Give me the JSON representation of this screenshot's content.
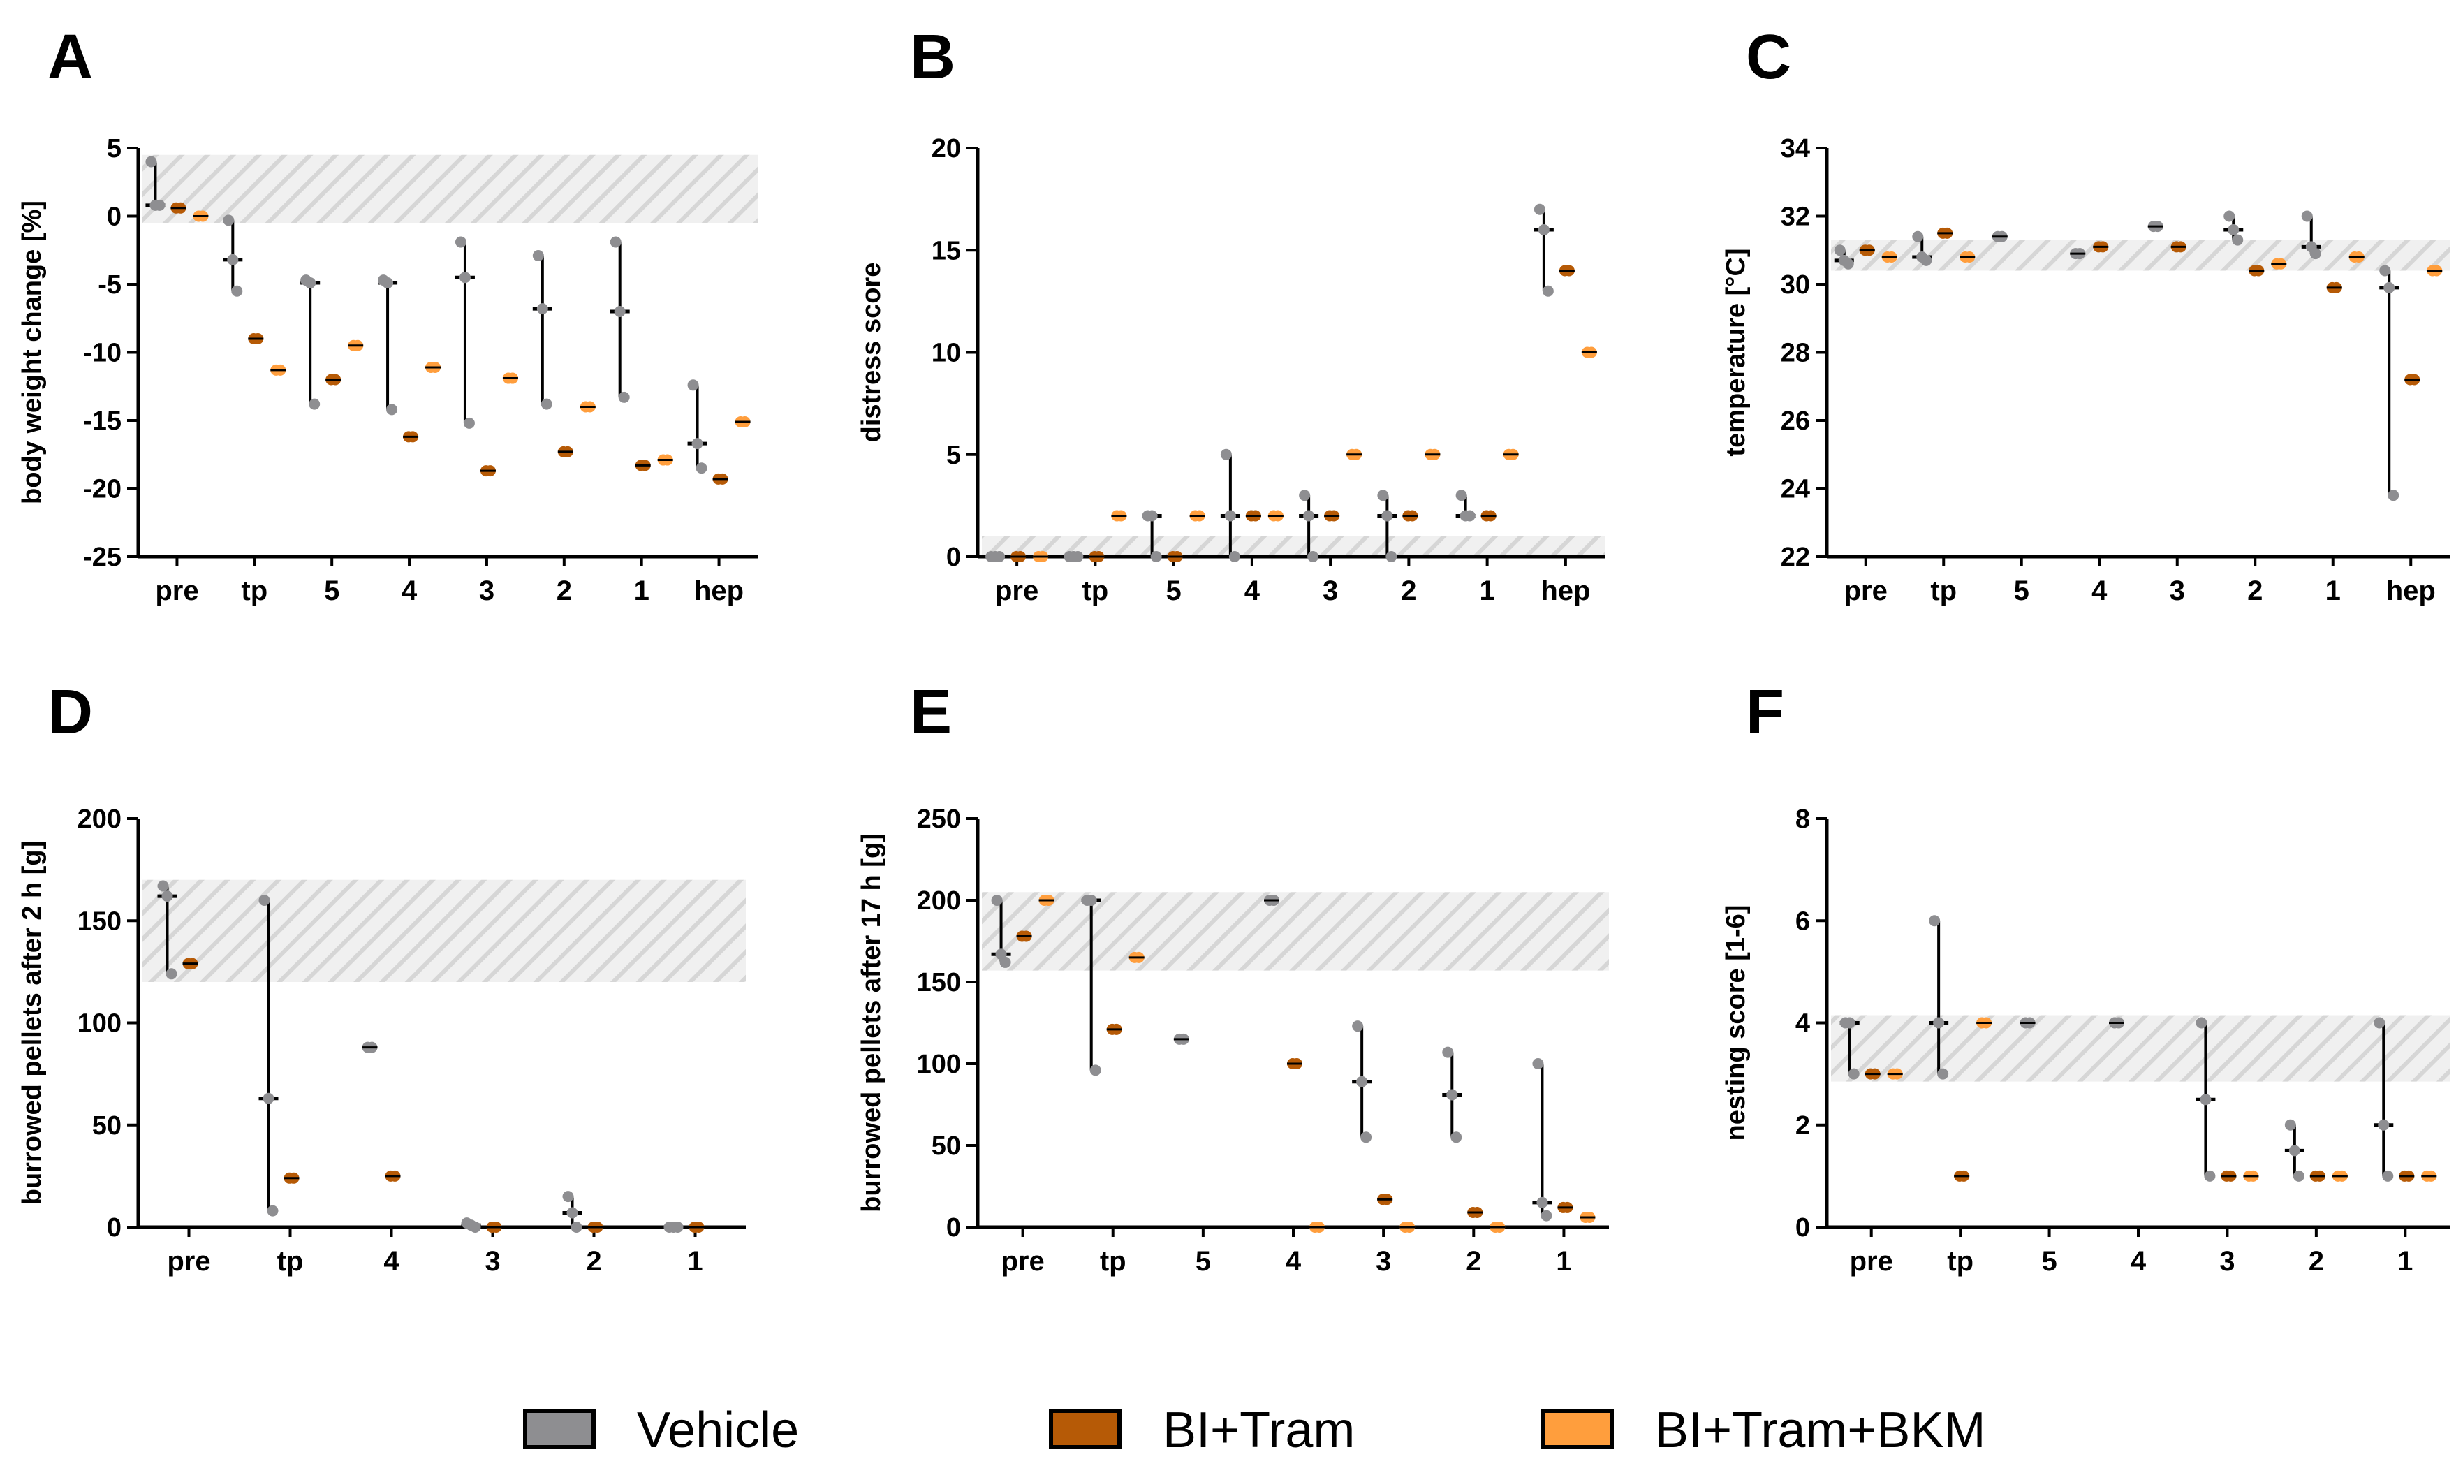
{
  "colors": {
    "Vehicle": "#8e8e91",
    "BI+Tram": "#b65a06",
    "BI+Tram+BKM": "#ff9e3d",
    "axis": "#000000",
    "band": "#d8d8d8"
  },
  "legend": {
    "items": [
      {
        "label": "Vehicle",
        "color": "#8e8e91"
      },
      {
        "label": "BI+Tram",
        "color": "#b65a06"
      },
      {
        "label": "BI+Tram+BKM",
        "color": "#ff9e3d"
      }
    ]
  },
  "chart_data": [
    {
      "letter": "A",
      "type": "scatter",
      "ylabel": "body weight change [%]",
      "categories": [
        "pre",
        "tp",
        "5",
        "4",
        "3",
        "2",
        "1",
        "hep"
      ],
      "ylim": [
        -25,
        5
      ],
      "yticks": [
        5,
        0,
        -5,
        -10,
        -15,
        -20,
        -25
      ],
      "band": [
        -0.5,
        4.5
      ],
      "series": [
        {
          "name": "Vehicle",
          "points": [
            [
              0,
              [
                4,
                0.8,
                0.8
              ]
            ],
            [
              1,
              [
                -0.3,
                -3.2,
                -5.5
              ]
            ],
            [
              2,
              [
                -4.7,
                -4.9,
                -13.8
              ]
            ],
            [
              3,
              [
                -4.7,
                -4.9,
                -14.2
              ]
            ],
            [
              4,
              [
                -1.9,
                -4.5,
                -15.2
              ]
            ],
            [
              5,
              [
                -2.9,
                -6.8,
                -13.8
              ]
            ],
            [
              6,
              [
                -1.9,
                -7,
                -13.3
              ]
            ],
            [
              7,
              [
                -12.4,
                -16.7,
                -18.5
              ]
            ]
          ]
        },
        {
          "name": "BI+Tram",
          "points": [
            [
              0,
              [
                0.6
              ]
            ],
            [
              1,
              [
                -9
              ]
            ],
            [
              2,
              [
                -12
              ]
            ],
            [
              3,
              [
                -16.2
              ]
            ],
            [
              4,
              [
                -18.7
              ]
            ],
            [
              5,
              [
                -17.3
              ]
            ],
            [
              6,
              [
                -18.3
              ]
            ],
            [
              7,
              [
                -19.3
              ]
            ]
          ]
        },
        {
          "name": "BI+Tram+BKM",
          "points": [
            [
              0,
              [
                0
              ]
            ],
            [
              1,
              [
                -11.3
              ]
            ],
            [
              2,
              [
                -9.5
              ]
            ],
            [
              3,
              [
                -11.1
              ]
            ],
            [
              4,
              [
                -11.9
              ]
            ],
            [
              5,
              [
                -14
              ]
            ],
            [
              6,
              [
                -17.9
              ]
            ],
            [
              7,
              [
                -15.1
              ]
            ]
          ]
        }
      ]
    },
    {
      "letter": "B",
      "type": "scatter",
      "ylabel": "distress score",
      "categories": [
        "pre",
        "tp",
        "5",
        "4",
        "3",
        "2",
        "1",
        "hep"
      ],
      "ylim": [
        0,
        20
      ],
      "yticks": [
        20,
        15,
        10,
        5,
        0
      ],
      "band": [
        0,
        1
      ],
      "series": [
        {
          "name": "Vehicle",
          "points": [
            [
              0,
              [
                0,
                0,
                0
              ]
            ],
            [
              1,
              [
                0,
                0,
                0
              ]
            ],
            [
              2,
              [
                2,
                2,
                0
              ]
            ],
            [
              3,
              [
                5,
                2,
                0
              ]
            ],
            [
              4,
              [
                3,
                2,
                0
              ]
            ],
            [
              5,
              [
                3,
                2,
                0
              ]
            ],
            [
              6,
              [
                3,
                2,
                2
              ]
            ],
            [
              7,
              [
                17,
                16,
                13
              ]
            ]
          ]
        },
        {
          "name": "BI+Tram",
          "points": [
            [
              0,
              [
                0
              ]
            ],
            [
              1,
              [
                0
              ]
            ],
            [
              2,
              [
                0
              ]
            ],
            [
              3,
              [
                2
              ]
            ],
            [
              4,
              [
                2
              ]
            ],
            [
              5,
              [
                2
              ]
            ],
            [
              6,
              [
                2
              ]
            ],
            [
              7,
              [
                14
              ]
            ]
          ]
        },
        {
          "name": "BI+Tram+BKM",
          "points": [
            [
              0,
              [
                0
              ]
            ],
            [
              1,
              [
                2
              ]
            ],
            [
              2,
              [
                2
              ]
            ],
            [
              3,
              [
                2
              ]
            ],
            [
              4,
              [
                5
              ]
            ],
            [
              5,
              [
                5
              ]
            ],
            [
              6,
              [
                5
              ]
            ],
            [
              7,
              [
                10
              ]
            ]
          ]
        }
      ]
    },
    {
      "letter": "C",
      "type": "scatter",
      "ylabel": "temperature [°C]",
      "categories": [
        "pre",
        "tp",
        "5",
        "4",
        "3",
        "2",
        "1",
        "hep"
      ],
      "ylim": [
        22,
        34
      ],
      "yticks": [
        34,
        32,
        30,
        28,
        26,
        24,
        22
      ],
      "band": [
        30.4,
        31.3
      ],
      "series": [
        {
          "name": "Vehicle",
          "points": [
            [
              0,
              [
                31,
                30.7,
                30.6
              ]
            ],
            [
              1,
              [
                31.4,
                30.8,
                30.7
              ]
            ],
            [
              2,
              [
                31.4
              ]
            ],
            [
              3,
              [
                30.9
              ]
            ],
            [
              4,
              [
                31.7
              ]
            ],
            [
              5,
              [
                32,
                31.6,
                31.3
              ]
            ],
            [
              6,
              [
                32,
                31.1,
                30.9
              ]
            ],
            [
              7,
              [
                30.4,
                29.9,
                23.8
              ]
            ]
          ]
        },
        {
          "name": "BI+Tram",
          "points": [
            [
              0,
              [
                31
              ]
            ],
            [
              1,
              [
                31.5
              ]
            ],
            [
              2,
              []
            ],
            [
              3,
              [
                31.1
              ]
            ],
            [
              4,
              [
                31.1
              ]
            ],
            [
              5,
              [
                30.4
              ]
            ],
            [
              6,
              [
                29.9
              ]
            ],
            [
              7,
              [
                27.2
              ]
            ]
          ]
        },
        {
          "name": "BI+Tram+BKM",
          "points": [
            [
              0,
              [
                30.8
              ]
            ],
            [
              1,
              [
                30.8
              ]
            ],
            [
              2,
              []
            ],
            [
              3,
              []
            ],
            [
              4,
              []
            ],
            [
              5,
              [
                30.6
              ]
            ],
            [
              6,
              [
                30.8
              ]
            ],
            [
              7,
              [
                30.4
              ]
            ]
          ]
        }
      ]
    },
    {
      "letter": "D",
      "type": "scatter",
      "ylabel": "burrowed pellets after 2 h [g]",
      "categories": [
        "pre",
        "tp",
        "4",
        "3",
        "2",
        "1"
      ],
      "ylim": [
        0,
        200
      ],
      "yticks": [
        200,
        150,
        100,
        50,
        0
      ],
      "band": [
        120,
        170
      ],
      "series": [
        {
          "name": "Vehicle",
          "points": [
            [
              0,
              [
                167,
                162,
                124
              ]
            ],
            [
              1,
              [
                160,
                63,
                8
              ]
            ],
            [
              2,
              [
                88
              ]
            ],
            [
              3,
              [
                2,
                1,
                0
              ]
            ],
            [
              4,
              [
                15,
                7,
                0
              ]
            ],
            [
              5,
              [
                0,
                0,
                0
              ]
            ]
          ]
        },
        {
          "name": "BI+Tram",
          "points": [
            [
              0,
              [
                129
              ]
            ],
            [
              1,
              [
                24
              ]
            ],
            [
              2,
              [
                25
              ]
            ],
            [
              3,
              [
                0
              ]
            ],
            [
              4,
              [
                0
              ]
            ],
            [
              5,
              [
                0
              ]
            ]
          ]
        },
        {
          "name": "BI+Tram+BKM",
          "points": [
            [
              0,
              []
            ],
            [
              1,
              []
            ],
            [
              2,
              []
            ],
            [
              3,
              []
            ],
            [
              4,
              []
            ],
            [
              5,
              []
            ]
          ]
        }
      ]
    },
    {
      "letter": "E",
      "type": "scatter",
      "ylabel": "burrowed pellets after 17 h [g]",
      "categories": [
        "pre",
        "tp",
        "5",
        "4",
        "3",
        "2",
        "1"
      ],
      "ylim": [
        0,
        250
      ],
      "yticks": [
        250,
        200,
        150,
        100,
        50,
        0
      ],
      "band": [
        157,
        205
      ],
      "series": [
        {
          "name": "Vehicle",
          "points": [
            [
              0,
              [
                200,
                167,
                162
              ]
            ],
            [
              1,
              [
                200,
                200,
                96
              ]
            ],
            [
              2,
              [
                115
              ]
            ],
            [
              3,
              [
                200
              ]
            ],
            [
              4,
              [
                123,
                89,
                55
              ]
            ],
            [
              5,
              [
                107,
                81,
                55
              ]
            ],
            [
              6,
              [
                100,
                15,
                7
              ]
            ]
          ]
        },
        {
          "name": "BI+Tram",
          "points": [
            [
              0,
              [
                178
              ]
            ],
            [
              1,
              [
                121
              ]
            ],
            [
              2,
              []
            ],
            [
              3,
              [
                100
              ]
            ],
            [
              4,
              [
                17
              ]
            ],
            [
              5,
              [
                9
              ]
            ],
            [
              6,
              [
                12
              ]
            ]
          ]
        },
        {
          "name": "BI+Tram+BKM",
          "points": [
            [
              0,
              [
                200
              ]
            ],
            [
              1,
              [
                165
              ]
            ],
            [
              2,
              []
            ],
            [
              3,
              [
                0
              ]
            ],
            [
              4,
              [
                0
              ]
            ],
            [
              5,
              [
                0
              ]
            ],
            [
              6,
              [
                6
              ]
            ]
          ]
        }
      ]
    },
    {
      "letter": "F",
      "type": "scatter",
      "ylabel": "nesting score [1-6]",
      "categories": [
        "pre",
        "tp",
        "5",
        "4",
        "3",
        "2",
        "1"
      ],
      "ylim": [
        0,
        8
      ],
      "yticks": [
        8,
        6,
        4,
        2,
        0
      ],
      "band": [
        2.85,
        4.15
      ],
      "series": [
        {
          "name": "Vehicle",
          "points": [
            [
              0,
              [
                4,
                4,
                3
              ]
            ],
            [
              1,
              [
                6,
                4,
                3
              ]
            ],
            [
              2,
              [
                4
              ]
            ],
            [
              3,
              [
                4
              ]
            ],
            [
              4,
              [
                4,
                2.5,
                1
              ]
            ],
            [
              5,
              [
                2,
                1.5,
                1
              ]
            ],
            [
              6,
              [
                4,
                2,
                1
              ]
            ]
          ]
        },
        {
          "name": "BI+Tram",
          "points": [
            [
              0,
              [
                3
              ]
            ],
            [
              1,
              [
                1
              ]
            ],
            [
              2,
              []
            ],
            [
              3,
              []
            ],
            [
              4,
              [
                1
              ]
            ],
            [
              5,
              [
                1
              ]
            ],
            [
              6,
              [
                1
              ]
            ]
          ]
        },
        {
          "name": "BI+Tram+BKM",
          "points": [
            [
              0,
              [
                3
              ]
            ],
            [
              1,
              [
                4
              ]
            ],
            [
              2,
              []
            ],
            [
              3,
              []
            ],
            [
              4,
              [
                1
              ]
            ],
            [
              5,
              [
                1
              ]
            ],
            [
              6,
              [
                1
              ]
            ]
          ]
        }
      ]
    }
  ]
}
